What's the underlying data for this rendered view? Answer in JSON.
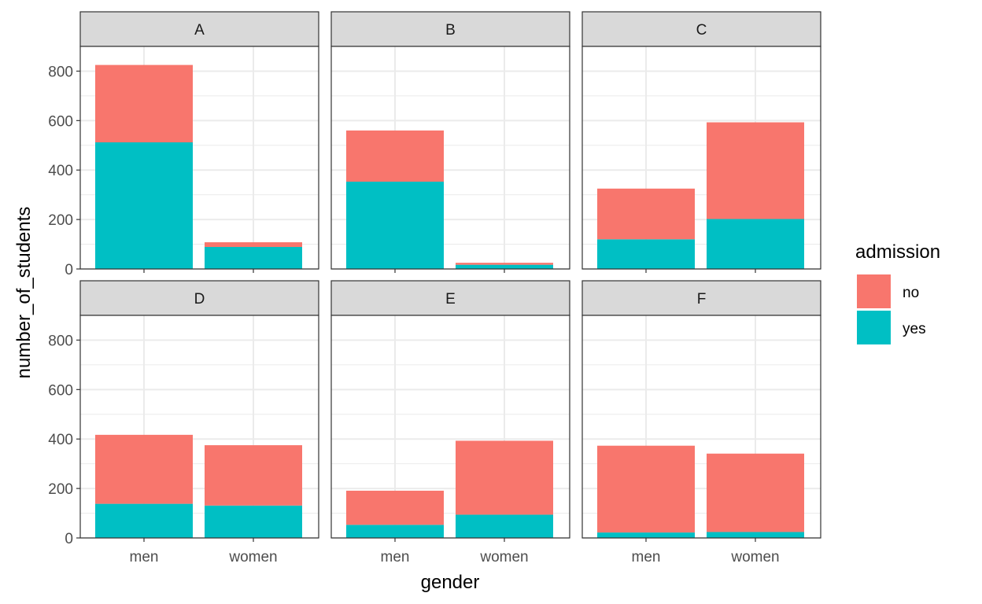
{
  "chart_data": {
    "type": "bar",
    "stacked": true,
    "facet_by": "department",
    "panels": [
      {
        "label": "A",
        "series": [
          {
            "name": "no",
            "values": [
              313,
              19
            ]
          },
          {
            "name": "yes",
            "values": [
              512,
              89
            ]
          }
        ]
      },
      {
        "label": "B",
        "series": [
          {
            "name": "no",
            "values": [
              207,
              8
            ]
          },
          {
            "name": "yes",
            "values": [
              353,
              17
            ]
          }
        ]
      },
      {
        "label": "C",
        "series": [
          {
            "name": "no",
            "values": [
              205,
              391
            ]
          },
          {
            "name": "yes",
            "values": [
              120,
              202
            ]
          }
        ]
      },
      {
        "label": "D",
        "series": [
          {
            "name": "no",
            "values": [
              279,
              244
            ]
          },
          {
            "name": "yes",
            "values": [
              138,
              131
            ]
          }
        ]
      },
      {
        "label": "E",
        "series": [
          {
            "name": "no",
            "values": [
              138,
              299
            ]
          },
          {
            "name": "yes",
            "values": [
              53,
              94
            ]
          }
        ]
      },
      {
        "label": "F",
        "series": [
          {
            "name": "no",
            "values": [
              351,
              317
            ]
          },
          {
            "name": "yes",
            "values": [
              22,
              24
            ]
          }
        ]
      }
    ],
    "categories": [
      "men",
      "women"
    ],
    "xlabel": "gender",
    "ylabel": "number_of_students",
    "ylim": [
      0,
      900
    ],
    "yticks": [
      0,
      200,
      400,
      600,
      800
    ],
    "grid": true,
    "legend": {
      "title": "admission",
      "position": "right",
      "entries": [
        {
          "label": "no",
          "color": "#F8766D"
        },
        {
          "label": "yes",
          "color": "#00BFC4"
        }
      ]
    },
    "colors": {
      "no": "#F8766D",
      "yes": "#00BFC4",
      "strip_fill": "#D9D9D9",
      "panel_border": "#333333",
      "grid": "#EBEBEB"
    }
  }
}
